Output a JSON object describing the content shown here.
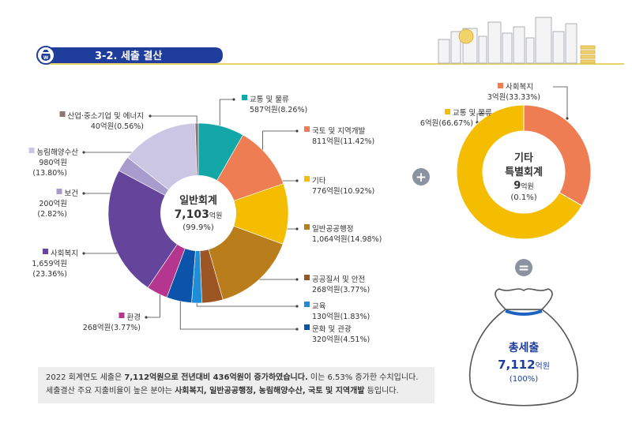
{
  "header": {
    "title": "3-2. 세출 결산",
    "icon": "money-bag-icon",
    "colors": {
      "primary": "#1f3d9a",
      "accent": "#e8d36a"
    }
  },
  "chart_data": [
    {
      "type": "pie",
      "center_label": {
        "title": "일반회계",
        "amount": "7,103",
        "unit": "억원",
        "share": "(99.9%)"
      },
      "unit": "억원",
      "slices": [
        {
          "name": "교통 및 물류",
          "value": 587,
          "value_text": "587억원",
          "pct_text": "(8.26%)",
          "color": "#14a7a7"
        },
        {
          "name": "국토 및 지역개발",
          "value": 811,
          "value_text": "811억원",
          "pct_text": "(11.42%)",
          "color": "#ee7d54"
        },
        {
          "name": "기타",
          "value": 776,
          "value_text": "776억원",
          "pct_text": "(10.92%)",
          "color": "#f5bd00"
        },
        {
          "name": "일반공공행정",
          "value": 1064,
          "value_text": "1,064억원",
          "pct_text": "(14.98%)",
          "color": "#b97d1b"
        },
        {
          "name": "공공질서 및 안전",
          "value": 268,
          "value_text": "268억원",
          "pct_text": "(3.77%)",
          "color": "#9c5624"
        },
        {
          "name": "교육",
          "value": 130,
          "value_text": "130억원",
          "pct_text": "(1.83%)",
          "color": "#1f8ed6"
        },
        {
          "name": "문화 및 관광",
          "value": 320,
          "value_text": "320억원",
          "pct_text": "(4.51%)",
          "color": "#0b54aa"
        },
        {
          "name": "환경",
          "value": 268,
          "value_text": "268억원",
          "pct_text": "(3.77%)",
          "color": "#b4368e"
        },
        {
          "name": "사회복지",
          "value": 1659,
          "value_text": "1,659억원",
          "pct_text": "(23.36%)",
          "color": "#65459b"
        },
        {
          "name": "보건",
          "value": 200,
          "value_text": "200억원",
          "pct_text": "(2.82%)",
          "color": "#a79ccb"
        },
        {
          "name": "농림해양수산",
          "value": 980,
          "value_text": "980억원",
          "pct_text": "(13.80%)",
          "color": "#cac6e3"
        },
        {
          "name": "산업·중소기업 및 에너지",
          "value": 40,
          "value_text": "40억원",
          "pct_text": "(0.56%)",
          "color": "#8a7774"
        }
      ]
    },
    {
      "type": "pie",
      "center_label": {
        "title1": "기타",
        "title2": "특별회계",
        "amount": "9",
        "unit": "억원",
        "share": "(0.1%)"
      },
      "unit": "억원",
      "slices": [
        {
          "name": "사회복지",
          "value": 3,
          "value_text": "3억원",
          "pct_text": "(33.33%)",
          "color": "#ee7d54"
        },
        {
          "name": "교통 및 물류",
          "value": 6,
          "value_text": "6억원",
          "pct_text": "(66.67%)",
          "color": "#f5bd00"
        }
      ]
    }
  ],
  "operators": {
    "plus": "+",
    "equals": "="
  },
  "total": {
    "title": "총세출",
    "amount": "7,112",
    "unit": "억원",
    "share": "(100%)"
  },
  "summary": {
    "line1_a": "2022 회계연도 세출은 ",
    "line1_b": "7,112억원으로 전년대비 436억원이 증가하였습니다.",
    "line1_c": " 이는 6.53% 증가한 수치입니다.",
    "line2_a": "세출결산 주요 지출비율이 높은 분야는 ",
    "line2_b": "사회복지, 일반공공행정, 농림해양수산, 국토 및 지역개발",
    "line2_c": " 등입니다."
  }
}
